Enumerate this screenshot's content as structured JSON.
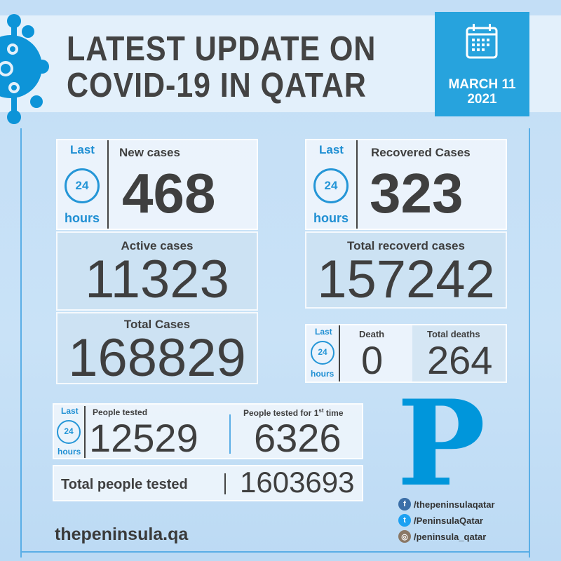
{
  "header": {
    "title_line1": "LATEST UPDATE ON",
    "title_line2": "COVID-19 IN QATAR",
    "date_line1": "MARCH 11",
    "date_line2": "2021"
  },
  "last24": {
    "top": "Last",
    "clock": "24",
    "bottom": "hours"
  },
  "new_cases": {
    "label": "New cases",
    "value": "468"
  },
  "recovered": {
    "label": "Recovered Cases",
    "value": "323"
  },
  "active": {
    "label": "Active cases",
    "value": "11323"
  },
  "total_recovered": {
    "label": "Total recoverd cases",
    "value": "157242"
  },
  "total_cases": {
    "label": "Total Cases",
    "value": "168829"
  },
  "death": {
    "label": "Death",
    "value": "0"
  },
  "total_deaths": {
    "label": "Total deaths",
    "value": "264"
  },
  "people_tested": {
    "label": "People tested",
    "value": "12529"
  },
  "first_time": {
    "label_pre": "People tested for 1",
    "label_sup": "st",
    "label_post": " time",
    "value": "6326"
  },
  "total_tested": {
    "label": "Total people tested",
    "value": "1603693"
  },
  "logo": {
    "letter": "P"
  },
  "website": "thepeninsula.qa",
  "socials": [
    {
      "icon": "facebook-icon",
      "handle": "/thepeninsulaqatar"
    },
    {
      "icon": "twitter-icon",
      "handle": "/PeninsulaQatar"
    },
    {
      "icon": "instagram-icon",
      "handle": "/peninsula_qatar"
    }
  ],
  "colors": {
    "accent": "#27a3dd",
    "logo": "#0096db",
    "text": "#3f3f3f"
  }
}
